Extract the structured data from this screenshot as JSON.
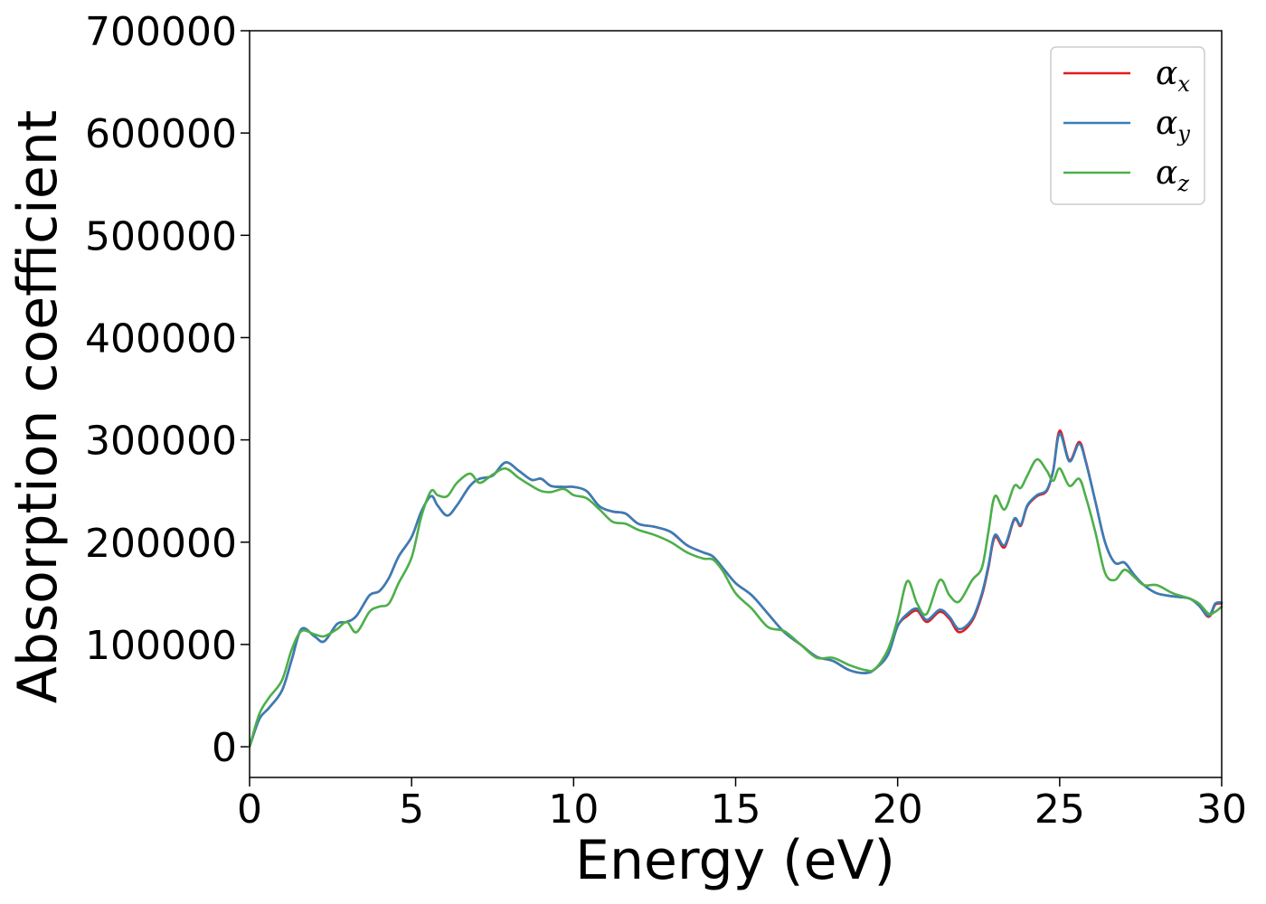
{
  "chart_data": {
    "type": "line",
    "xlabel": "Energy (eV)",
    "ylabel": "Absorption coefficient",
    "xlim": [
      0,
      30
    ],
    "ylim": [
      -30000,
      700000
    ],
    "xticks": [
      0,
      5,
      10,
      15,
      20,
      25,
      30
    ],
    "yticks": [
      0,
      100000,
      200000,
      300000,
      400000,
      500000,
      600000,
      700000
    ],
    "grid": false,
    "legend_position": "top-right",
    "series": [
      {
        "name": "α_x",
        "label_main": "α",
        "label_sub": "x",
        "color": "#e41a1c",
        "x": [
          0,
          0.3,
          0.6,
          1.0,
          1.3,
          1.6,
          2.0,
          2.3,
          2.7,
          3.0,
          3.3,
          3.7,
          4.0,
          4.3,
          4.6,
          5.0,
          5.3,
          5.6,
          5.8,
          6.1,
          6.4,
          6.8,
          7.1,
          7.5,
          7.9,
          8.3,
          8.7,
          9.0,
          9.3,
          9.7,
          10.0,
          10.4,
          10.8,
          11.2,
          11.6,
          12.0,
          12.5,
          13.0,
          13.5,
          14.0,
          14.3,
          14.6,
          15.0,
          15.5,
          16.0,
          16.5,
          17.0,
          17.5,
          18.0,
          18.5,
          19.0,
          19.3,
          19.7,
          20.0,
          20.3,
          20.6,
          20.9,
          21.3,
          21.6,
          21.9,
          22.3,
          22.6,
          22.8,
          23.0,
          23.3,
          23.6,
          23.8,
          24.0,
          24.3,
          24.6,
          24.8,
          25.0,
          25.3,
          25.6,
          25.8,
          26.1,
          26.4,
          26.7,
          27.0,
          27.3,
          27.6,
          28.0,
          28.5,
          29.0,
          29.3,
          29.6,
          29.8,
          30.0
        ],
        "y": [
          0,
          27000,
          38000,
          55000,
          85000,
          115000,
          108000,
          103000,
          120000,
          122000,
          128000,
          148000,
          152000,
          165000,
          186000,
          205000,
          230000,
          245000,
          236000,
          226000,
          236000,
          255000,
          262000,
          265000,
          278000,
          270000,
          261000,
          262000,
          255000,
          254000,
          254000,
          250000,
          235000,
          230000,
          228000,
          218000,
          215000,
          210000,
          197000,
          190000,
          186000,
          175000,
          160000,
          148000,
          130000,
          112000,
          100000,
          88000,
          84000,
          75000,
          72000,
          76000,
          90000,
          118000,
          128000,
          133000,
          122000,
          132000,
          125000,
          112000,
          123000,
          148000,
          175000,
          205000,
          195000,
          222000,
          216000,
          235000,
          245000,
          250000,
          270000,
          309000,
          280000,
          298000,
          280000,
          240000,
          200000,
          180000,
          180000,
          168000,
          158000,
          150000,
          147000,
          145000,
          138000,
          127000,
          139000,
          140000
        ]
      },
      {
        "name": "α_y",
        "label_main": "α",
        "label_sub": "y",
        "color": "#377eb8",
        "x": [
          0,
          0.3,
          0.6,
          1.0,
          1.3,
          1.6,
          2.0,
          2.3,
          2.7,
          3.0,
          3.3,
          3.7,
          4.0,
          4.3,
          4.6,
          5.0,
          5.3,
          5.6,
          5.8,
          6.1,
          6.4,
          6.8,
          7.1,
          7.5,
          7.9,
          8.3,
          8.7,
          9.0,
          9.3,
          9.7,
          10.0,
          10.4,
          10.8,
          11.2,
          11.6,
          12.0,
          12.5,
          13.0,
          13.5,
          14.0,
          14.3,
          14.6,
          15.0,
          15.5,
          16.0,
          16.5,
          17.0,
          17.5,
          18.0,
          18.5,
          19.0,
          19.3,
          19.7,
          20.0,
          20.3,
          20.6,
          20.9,
          21.3,
          21.6,
          21.9,
          22.3,
          22.6,
          22.8,
          23.0,
          23.3,
          23.6,
          23.8,
          24.0,
          24.3,
          24.6,
          24.8,
          25.0,
          25.3,
          25.6,
          25.8,
          26.1,
          26.4,
          26.7,
          27.0,
          27.3,
          27.6,
          28.0,
          28.5,
          29.0,
          29.3,
          29.6,
          29.8,
          30.0
        ],
        "y": [
          0,
          27000,
          38000,
          55000,
          85000,
          115000,
          108000,
          103000,
          120000,
          122000,
          128000,
          148000,
          152000,
          165000,
          186000,
          205000,
          230000,
          245000,
          236000,
          226000,
          236000,
          255000,
          262000,
          265000,
          278000,
          270000,
          261000,
          262000,
          255000,
          254000,
          254000,
          250000,
          235000,
          230000,
          228000,
          218000,
          215000,
          210000,
          197000,
          190000,
          186000,
          175000,
          160000,
          148000,
          130000,
          112000,
          100000,
          88000,
          84000,
          75000,
          72000,
          76000,
          90000,
          118000,
          130000,
          135000,
          124000,
          134000,
          127000,
          115000,
          125000,
          150000,
          177000,
          207000,
          197000,
          223000,
          217000,
          236000,
          246000,
          251000,
          270000,
          306000,
          279000,
          296000,
          279000,
          240000,
          200000,
          180000,
          180000,
          168000,
          158000,
          150000,
          147000,
          145000,
          138000,
          128000,
          140000,
          141000
        ]
      },
      {
        "name": "α_z",
        "label_main": "α",
        "label_sub": "z",
        "color": "#4daf4a",
        "x": [
          0,
          0.3,
          0.6,
          1.0,
          1.3,
          1.6,
          2.0,
          2.3,
          2.7,
          3.0,
          3.3,
          3.7,
          4.0,
          4.3,
          4.6,
          5.0,
          5.3,
          5.6,
          5.8,
          6.1,
          6.4,
          6.8,
          7.1,
          7.5,
          7.9,
          8.3,
          8.7,
          9.0,
          9.3,
          9.7,
          10.0,
          10.4,
          10.8,
          11.2,
          11.6,
          12.0,
          12.5,
          13.0,
          13.5,
          14.0,
          14.3,
          14.6,
          15.0,
          15.5,
          16.0,
          16.5,
          17.0,
          17.5,
          18.0,
          18.5,
          19.0,
          19.3,
          19.7,
          20.0,
          20.3,
          20.6,
          20.9,
          21.3,
          21.6,
          21.9,
          22.3,
          22.6,
          22.8,
          23.0,
          23.3,
          23.6,
          23.8,
          24.0,
          24.3,
          24.6,
          24.8,
          25.0,
          25.3,
          25.6,
          25.8,
          26.1,
          26.4,
          26.7,
          27.0,
          27.3,
          27.6,
          28.0,
          28.5,
          29.0,
          29.3,
          29.6,
          29.8,
          30.0
        ],
        "y": [
          0,
          32000,
          48000,
          65000,
          95000,
          113000,
          110000,
          108000,
          115000,
          122000,
          112000,
          132000,
          137000,
          140000,
          160000,
          185000,
          225000,
          250000,
          246000,
          245000,
          258000,
          267000,
          258000,
          266000,
          272000,
          263000,
          255000,
          250000,
          249000,
          252000,
          246000,
          243000,
          232000,
          220000,
          218000,
          212000,
          207000,
          200000,
          190000,
          184000,
          183000,
          172000,
          150000,
          135000,
          117000,
          113000,
          100000,
          87000,
          87000,
          80000,
          75000,
          76000,
          95000,
          125000,
          162000,
          140000,
          130000,
          163000,
          148000,
          142000,
          163000,
          175000,
          210000,
          245000,
          232000,
          255000,
          253000,
          265000,
          281000,
          270000,
          260000,
          272000,
          255000,
          262000,
          245000,
          210000,
          170000,
          163000,
          173000,
          166000,
          158000,
          158000,
          150000,
          145000,
          140000,
          130000,
          132000,
          137000
        ]
      }
    ]
  }
}
